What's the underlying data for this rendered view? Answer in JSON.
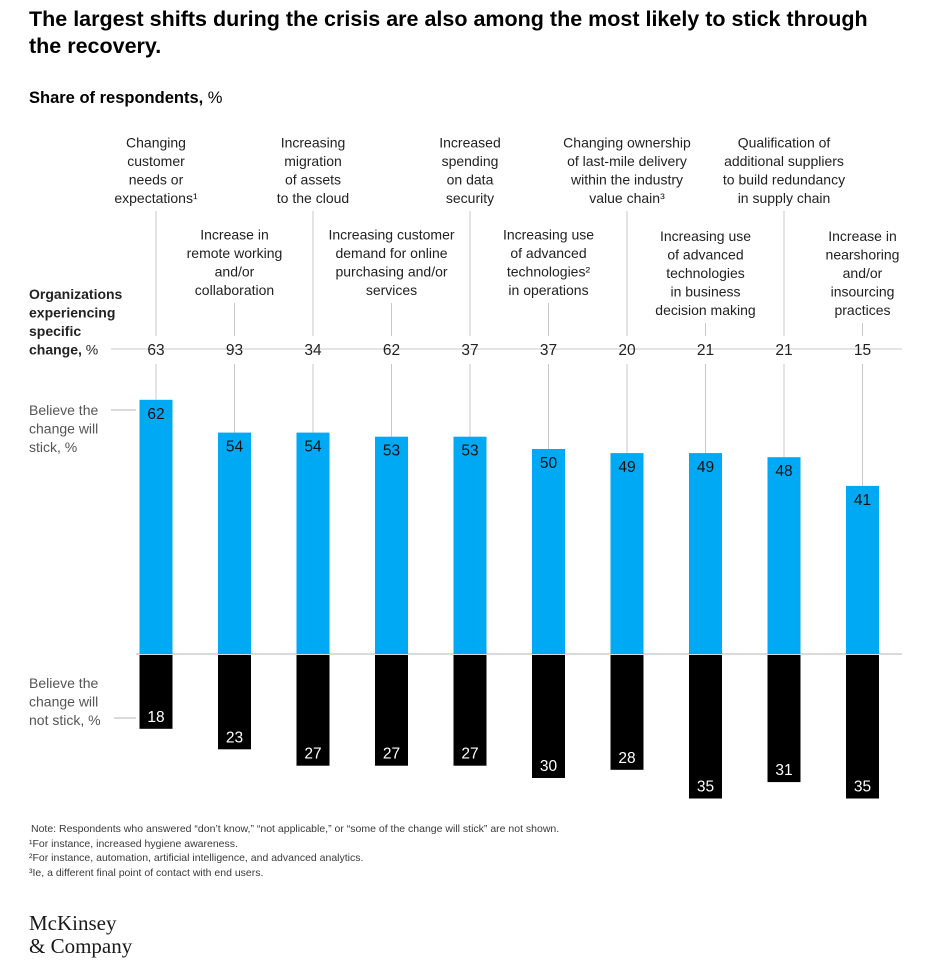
{
  "title": "The largest shifts during the crisis are also among the most likely to stick through the recovery.",
  "subtitle_bold": "Share of respondents,",
  "subtitle_unit": " %",
  "row_labels": {
    "organizations": [
      "Organizations",
      "experiencing",
      "specific",
      "change,"
    ],
    "organizations_unit": " %",
    "stick": [
      "Believe the",
      "change will",
      "stick, %"
    ],
    "not_stick": [
      "Believe the",
      "change will",
      "not stick, %"
    ]
  },
  "chart_data": {
    "type": "bar",
    "categories": [
      [
        "Changing",
        "customer",
        "needs or",
        "expectations¹"
      ],
      [
        "Increase in",
        "remote working",
        "and/or",
        "collaboration"
      ],
      [
        "Increasing",
        "migration",
        "of assets",
        "to the cloud"
      ],
      [
        "Increasing customer",
        "demand for online",
        "purchasing and/or",
        "services"
      ],
      [
        "Increased",
        "spending",
        "on data",
        "security"
      ],
      [
        "Increasing use",
        "of advanced",
        "technologies²",
        "in operations"
      ],
      [
        "Changing ownership",
        "of last-mile delivery",
        "within the industry",
        "value chain³"
      ],
      [
        "Increasing use",
        "of advanced",
        "technologies",
        "in business",
        "decision making"
      ],
      [
        "Qualification of",
        "additional suppliers",
        "to build redundancy",
        "in supply chain"
      ],
      [
        "Increase in",
        "nearshoring",
        "and/or",
        "insourcing",
        "practices"
      ]
    ],
    "organizations_experiencing": [
      63,
      93,
      34,
      62,
      37,
      37,
      20,
      21,
      21,
      15
    ],
    "series": [
      {
        "name": "Believe the change will stick, %",
        "values": [
          62,
          54,
          54,
          53,
          53,
          50,
          49,
          49,
          48,
          41
        ],
        "color": "#00a9f4"
      },
      {
        "name": "Believe the change will not stick, %",
        "values": [
          18,
          23,
          27,
          27,
          27,
          30,
          28,
          35,
          31,
          35
        ],
        "color": "#000000"
      }
    ]
  },
  "footnotes": [
    "Note: Respondents who answered “don’t know,” “not applicable,” or “some of the change will stick” are not shown.",
    "¹For instance, increased hygiene awareness.",
    "²For instance, automation, artificial intelligence, and advanced analytics.",
    "³Ie, a different final point of contact with end users."
  ],
  "logo": [
    "McKinsey",
    "& Company"
  ]
}
